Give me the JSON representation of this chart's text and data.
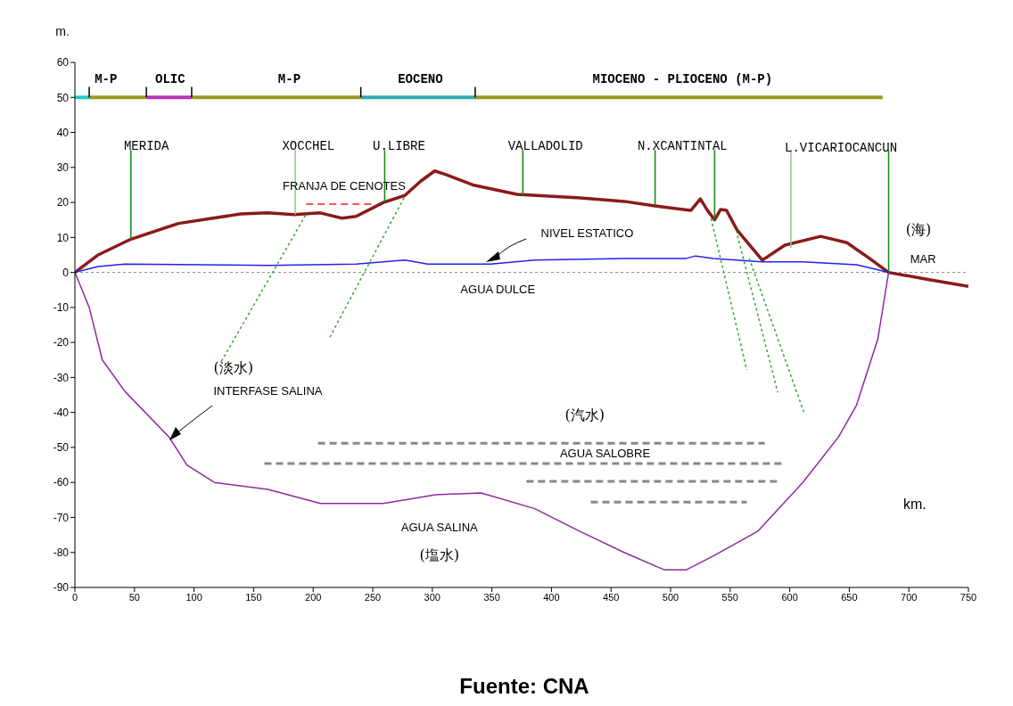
{
  "chart_data": {
    "type": "line",
    "xlabel": "km.",
    "ylabel": "m.",
    "xlim": [
      0,
      750
    ],
    "ylim": [
      -90,
      60
    ],
    "xticks": [
      0,
      50,
      100,
      150,
      200,
      250,
      300,
      350,
      400,
      450,
      500,
      550,
      600,
      650,
      700,
      750
    ],
    "yticks": [
      -90,
      -80,
      -70,
      -60,
      -50,
      -40,
      -30,
      -20,
      -10,
      0,
      10,
      20,
      30,
      40,
      50,
      60
    ],
    "marker": "none",
    "ref_lines": [
      {
        "axis": "y",
        "value": 0,
        "color": "#888888",
        "line_style": "dotted"
      }
    ],
    "series": [
      {
        "color": "#8b1a1a",
        "line_style": "solid",
        "x": [
          0,
          19.5,
          47,
          87,
          139,
          162,
          184,
          206,
          224,
          236,
          259,
          277,
          290,
          302,
          311,
          334,
          371,
          424,
          461,
          487,
          517,
          525,
          531,
          537,
          542,
          547,
          556,
          577,
          596,
          626,
          648,
          667,
          683,
          716,
          750
        ],
        "values": [
          0,
          5,
          9.5,
          14,
          16.7,
          17,
          16.5,
          17,
          15.5,
          16,
          20,
          22,
          26,
          29,
          28,
          25,
          22.3,
          21.3,
          20.3,
          19,
          17.7,
          21,
          17.7,
          15,
          18,
          17.7,
          12,
          3.5,
          7.8,
          10.3,
          8.5,
          4,
          0,
          -2,
          -4
        ]
      },
      {
        "color": "#2222ee",
        "line_style": "solid",
        "x": [
          0,
          19.5,
          42,
          162,
          236,
          277,
          296,
          349,
          386,
          461,
          513,
          521,
          536,
          577,
          611,
          656,
          683
        ],
        "values": [
          0,
          1.7,
          2.4,
          2,
          2.4,
          3.5,
          2.4,
          2.4,
          3.5,
          4,
          4,
          4.7,
          4,
          3,
          3,
          2.2,
          0
        ]
      },
      {
        "color": "#8e2a9e",
        "line_style": "solid",
        "x": [
          0,
          12,
          23,
          42,
          79,
          94,
          117,
          162,
          206,
          259,
          303,
          341,
          386,
          424,
          461,
          495,
          513,
          536,
          573,
          611,
          641,
          656,
          674,
          683
        ],
        "values": [
          0,
          -10,
          -25,
          -34,
          -47,
          -55,
          -60,
          -62,
          -66,
          -66,
          -63.5,
          -63,
          -67.5,
          -74,
          -80,
          -85,
          -85,
          -81,
          -74,
          -60,
          -47,
          -38,
          -19,
          0
        ]
      },
      {
        "color": "#22cccc",
        "line_style": "solid",
        "x": [
          0,
          12
        ],
        "values": [
          50,
          50
        ]
      },
      {
        "color": "#999922",
        "line_style": "solid",
        "x": [
          12,
          60
        ],
        "values": [
          50,
          50
        ]
      },
      {
        "color": "#bb33bb",
        "line_style": "solid",
        "x": [
          60,
          98
        ],
        "values": [
          50,
          50
        ]
      },
      {
        "color": "#999922",
        "line_style": "solid",
        "x": [
          98,
          240
        ],
        "values": [
          50,
          50
        ]
      },
      {
        "color": "#33aaaa",
        "line_style": "solid",
        "x": [
          240,
          336
        ],
        "values": [
          50,
          50
        ]
      },
      {
        "color": "#999922",
        "line_style": "solid",
        "x": [
          336,
          678
        ],
        "values": [
          50,
          50
        ]
      },
      {
        "color": "#000000",
        "line_style": "solid",
        "x": [
          12,
          12
        ],
        "values": [
          50,
          53
        ]
      },
      {
        "color": "#000000",
        "line_style": "solid",
        "x": [
          60,
          60
        ],
        "values": [
          50,
          53
        ]
      },
      {
        "color": "#000000",
        "line_style": "solid",
        "x": [
          98,
          98
        ],
        "values": [
          50,
          53
        ]
      },
      {
        "color": "#000000",
        "line_style": "solid",
        "x": [
          240,
          240
        ],
        "values": [
          50,
          53
        ]
      },
      {
        "color": "#000000",
        "line_style": "solid",
        "x": [
          336,
          336
        ],
        "values": [
          50,
          53
        ]
      },
      {
        "color": "#118811",
        "line_style": "solid",
        "x": [
          47,
          47
        ],
        "values": [
          9.5,
          35
        ]
      },
      {
        "color": "#88cc88",
        "line_style": "solid",
        "x": [
          185,
          185
        ],
        "values": [
          16.5,
          35
        ]
      },
      {
        "color": "#118811",
        "line_style": "solid",
        "x": [
          260,
          260
        ],
        "values": [
          20,
          35
        ]
      },
      {
        "color": "#118811",
        "line_style": "solid",
        "x": [
          376,
          376
        ],
        "values": [
          22,
          35
        ]
      },
      {
        "color": "#118811",
        "line_style": "solid",
        "x": [
          487,
          487
        ],
        "values": [
          19,
          35
        ]
      },
      {
        "color": "#118811",
        "line_style": "solid",
        "x": [
          537,
          537
        ],
        "values": [
          15,
          35
        ]
      },
      {
        "color": "#88cc88",
        "line_style": "solid",
        "x": [
          601,
          601
        ],
        "values": [
          7,
          35
        ]
      },
      {
        "color": "#118811",
        "line_style": "solid",
        "x": [
          683,
          683
        ],
        "values": [
          0,
          35
        ]
      },
      {
        "color": "#ee2222",
        "line_style": "dashed",
        "x": [
          194,
          251
        ],
        "values": [
          19.5,
          19.5
        ]
      },
      {
        "color": "#33aa33",
        "line_style": "dotted",
        "x": [
          123,
          195
        ],
        "values": [
          -25.4,
          17.2
        ]
      },
      {
        "color": "#33aa33",
        "line_style": "dotted",
        "x": [
          214,
          277
        ],
        "values": [
          -18.5,
          21.8
        ]
      },
      {
        "color": "#33aa33",
        "line_style": "dotted",
        "x": [
          534,
          564
        ],
        "values": [
          15.4,
          -27.9
        ]
      },
      {
        "color": "#33aa33",
        "line_style": "dotted",
        "x": [
          555,
          590
        ],
        "values": [
          12,
          -34.3
        ]
      },
      {
        "color": "#33aa33",
        "line_style": "dotted",
        "x": [
          566,
          612
        ],
        "values": [
          4,
          -40
        ]
      },
      {
        "color": "#888888",
        "line_style": "dashed",
        "x": [
          204,
          579
        ],
        "values": [
          -48.8,
          -48.8
        ]
      },
      {
        "color": "#888888",
        "line_style": "dashed",
        "x": [
          159,
          596
        ],
        "values": [
          -54.6,
          -54.6
        ]
      },
      {
        "color": "#888888",
        "line_style": "dashed",
        "x": [
          379,
          590
        ],
        "values": [
          -59.7,
          -59.7
        ]
      },
      {
        "color": "#888888",
        "line_style": "dashed",
        "x": [
          433,
          564
        ],
        "values": [
          -65.6,
          -65.6
        ]
      }
    ],
    "annotations": [
      "M-P",
      "OLIC",
      "M-P",
      "EOCENO",
      "MIOCENO - PLIOCENO (M-P)",
      "MERIDA",
      "XOCCHEL",
      "U.LIBRE",
      "VALLADOLID",
      "N.XCANTINTAL",
      "L.VICARIOCANCUN",
      "FRANJA DE CENOTES",
      "NIVEL ESTATICO",
      "AGUA DULCE",
      "(海)",
      "MAR",
      "(淡水)",
      "INTERFASE SALINA",
      "(汽水)",
      "AGUA SALOBRE",
      "AGUA SALINA",
      "(塩水)",
      "Fuente: CNA"
    ]
  }
}
